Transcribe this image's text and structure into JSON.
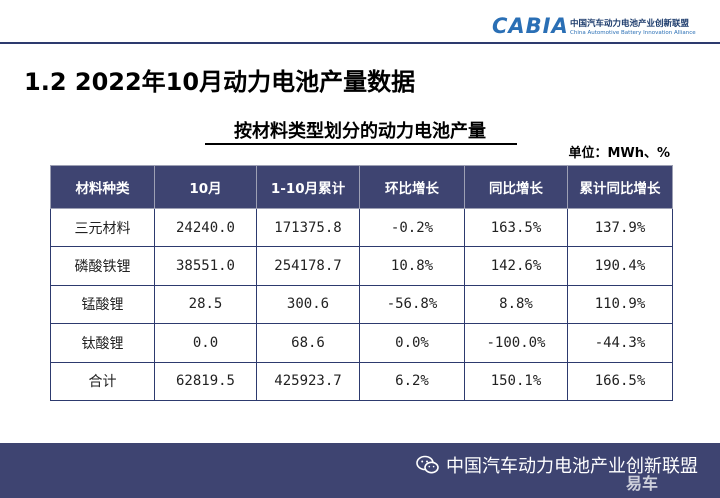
{
  "header": {
    "logo_mark": "CABIA",
    "logo_cn": "中国汽车动力电池产业创新联盟",
    "logo_en": "China Automotive Battery Innovation Alliance"
  },
  "slide": {
    "title": "1.2  2022年10月动力电池产量数据"
  },
  "table_section": {
    "title": "按材料类型划分的动力电池产量",
    "unit": "单位：MWh、%",
    "columns": [
      "材料种类",
      "10月",
      "1-10月累计",
      "环比增长",
      "同比增长",
      "累计同比增长"
    ],
    "rows": [
      [
        "三元材料",
        "24240.0",
        "171375.8",
        "-0.2%",
        "163.5%",
        "137.9%"
      ],
      [
        "磷酸铁锂",
        "38551.0",
        "254178.7",
        "10.8%",
        "142.6%",
        "190.4%"
      ],
      [
        "锰酸锂",
        "28.5",
        "300.6",
        "-56.8%",
        "8.8%",
        "110.9%"
      ],
      [
        "钛酸锂",
        "0.0",
        "68.6",
        "0.0%",
        "-100.0%",
        "-44.3%"
      ],
      [
        "合计",
        "62819.5",
        "425923.7",
        "6.2%",
        "150.1%",
        "166.5%"
      ]
    ]
  },
  "footer": {
    "text": "中国汽车动力电池产业创新联盟",
    "watermark": "易车"
  },
  "colors": {
    "header_fill": "#3e4471",
    "footer_fill": "#3e4471",
    "logo_blue": "#2a6fb5"
  },
  "icons": {
    "wechat": "wechat-icon"
  }
}
